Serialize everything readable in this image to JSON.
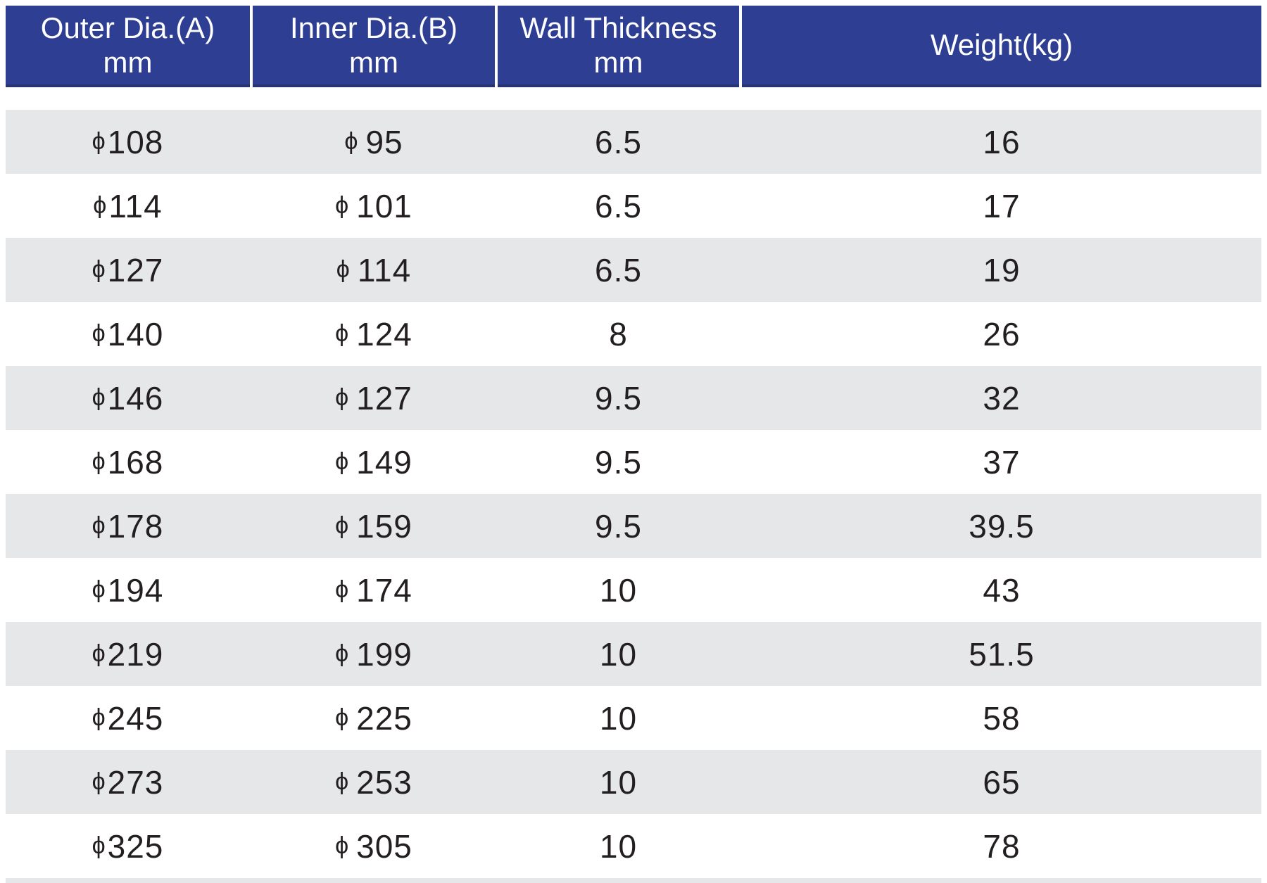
{
  "colors": {
    "header_bg": "#2e3e92",
    "header_border_bottom": "#263572",
    "header_text": "#ffffff",
    "row_alt_bg": "#e6e7e9",
    "row_bg": "#ffffff",
    "cell_text": "#231f20"
  },
  "table": {
    "phi_symbol": "ϕ",
    "header": [
      {
        "line1": "Outer Dia.(A)",
        "line2": "mm"
      },
      {
        "line1": "Inner Dia.(B)",
        "line2": "mm"
      },
      {
        "line1": "Wall Thickness",
        "line2": "mm"
      },
      {
        "line1": "Weight(kg)",
        "line2": ""
      }
    ],
    "rows": [
      [
        "108",
        "95",
        "6.5",
        "16"
      ],
      [
        "114",
        "101",
        "6.5",
        "17"
      ],
      [
        "127",
        "114",
        "6.5",
        "19"
      ],
      [
        "140",
        "124",
        "8",
        "26"
      ],
      [
        "146",
        "127",
        "9.5",
        "32"
      ],
      [
        "168",
        "149",
        "9.5",
        "37"
      ],
      [
        "178",
        "159",
        "9.5",
        "39.5"
      ],
      [
        "194",
        "174",
        "10",
        "43"
      ],
      [
        "219",
        "199",
        "10",
        "51.5"
      ],
      [
        "245",
        "225",
        "10",
        "58"
      ],
      [
        "273",
        "253",
        "10",
        "65"
      ],
      [
        "325",
        "305",
        "10",
        "78"
      ]
    ]
  }
}
